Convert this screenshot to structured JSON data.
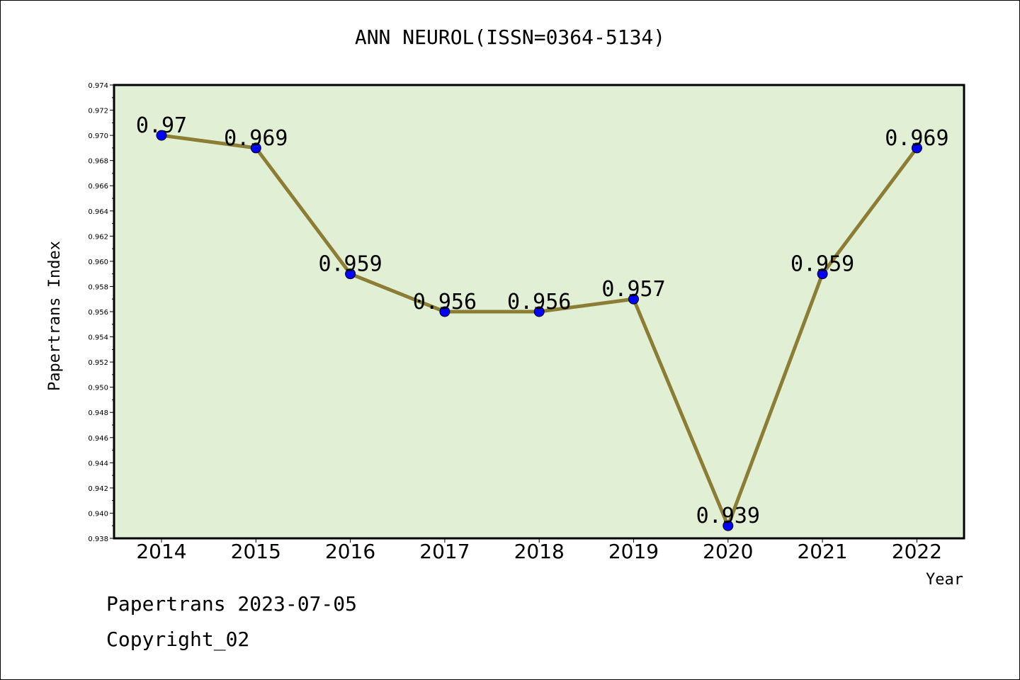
{
  "chart_data": {
    "type": "line",
    "title": "ANN NEUROL(ISSN=0364-5134)",
    "xlabel": "Year",
    "ylabel": "Papertrans Index",
    "categories": [
      "2014",
      "2015",
      "2016",
      "2017",
      "2018",
      "2019",
      "2020",
      "2021",
      "2022"
    ],
    "values": [
      0.97,
      0.969,
      0.959,
      0.956,
      0.956,
      0.957,
      0.939,
      0.959,
      0.969
    ],
    "data_labels": [
      "0.97",
      "0.969",
      "0.959",
      "0.956",
      "0.956",
      "0.957",
      "0.939",
      "0.959",
      "0.969"
    ],
    "ylim": [
      0.938,
      0.974
    ],
    "yticks": [
      "0.938",
      "0.940",
      "0.942",
      "0.944",
      "0.946",
      "0.948",
      "0.950",
      "0.952",
      "0.954",
      "0.956",
      "0.958",
      "0.960",
      "0.962",
      "0.964",
      "0.966",
      "0.968",
      "0.970",
      "0.972",
      "0.974"
    ],
    "grid": false,
    "colors": {
      "plot_bg": "#e1efd5",
      "line": "#8b7d34",
      "marker": "#0000ff"
    }
  },
  "footer": {
    "line1": "Papertrans 2023-07-05",
    "line2": "Copyright_02"
  }
}
